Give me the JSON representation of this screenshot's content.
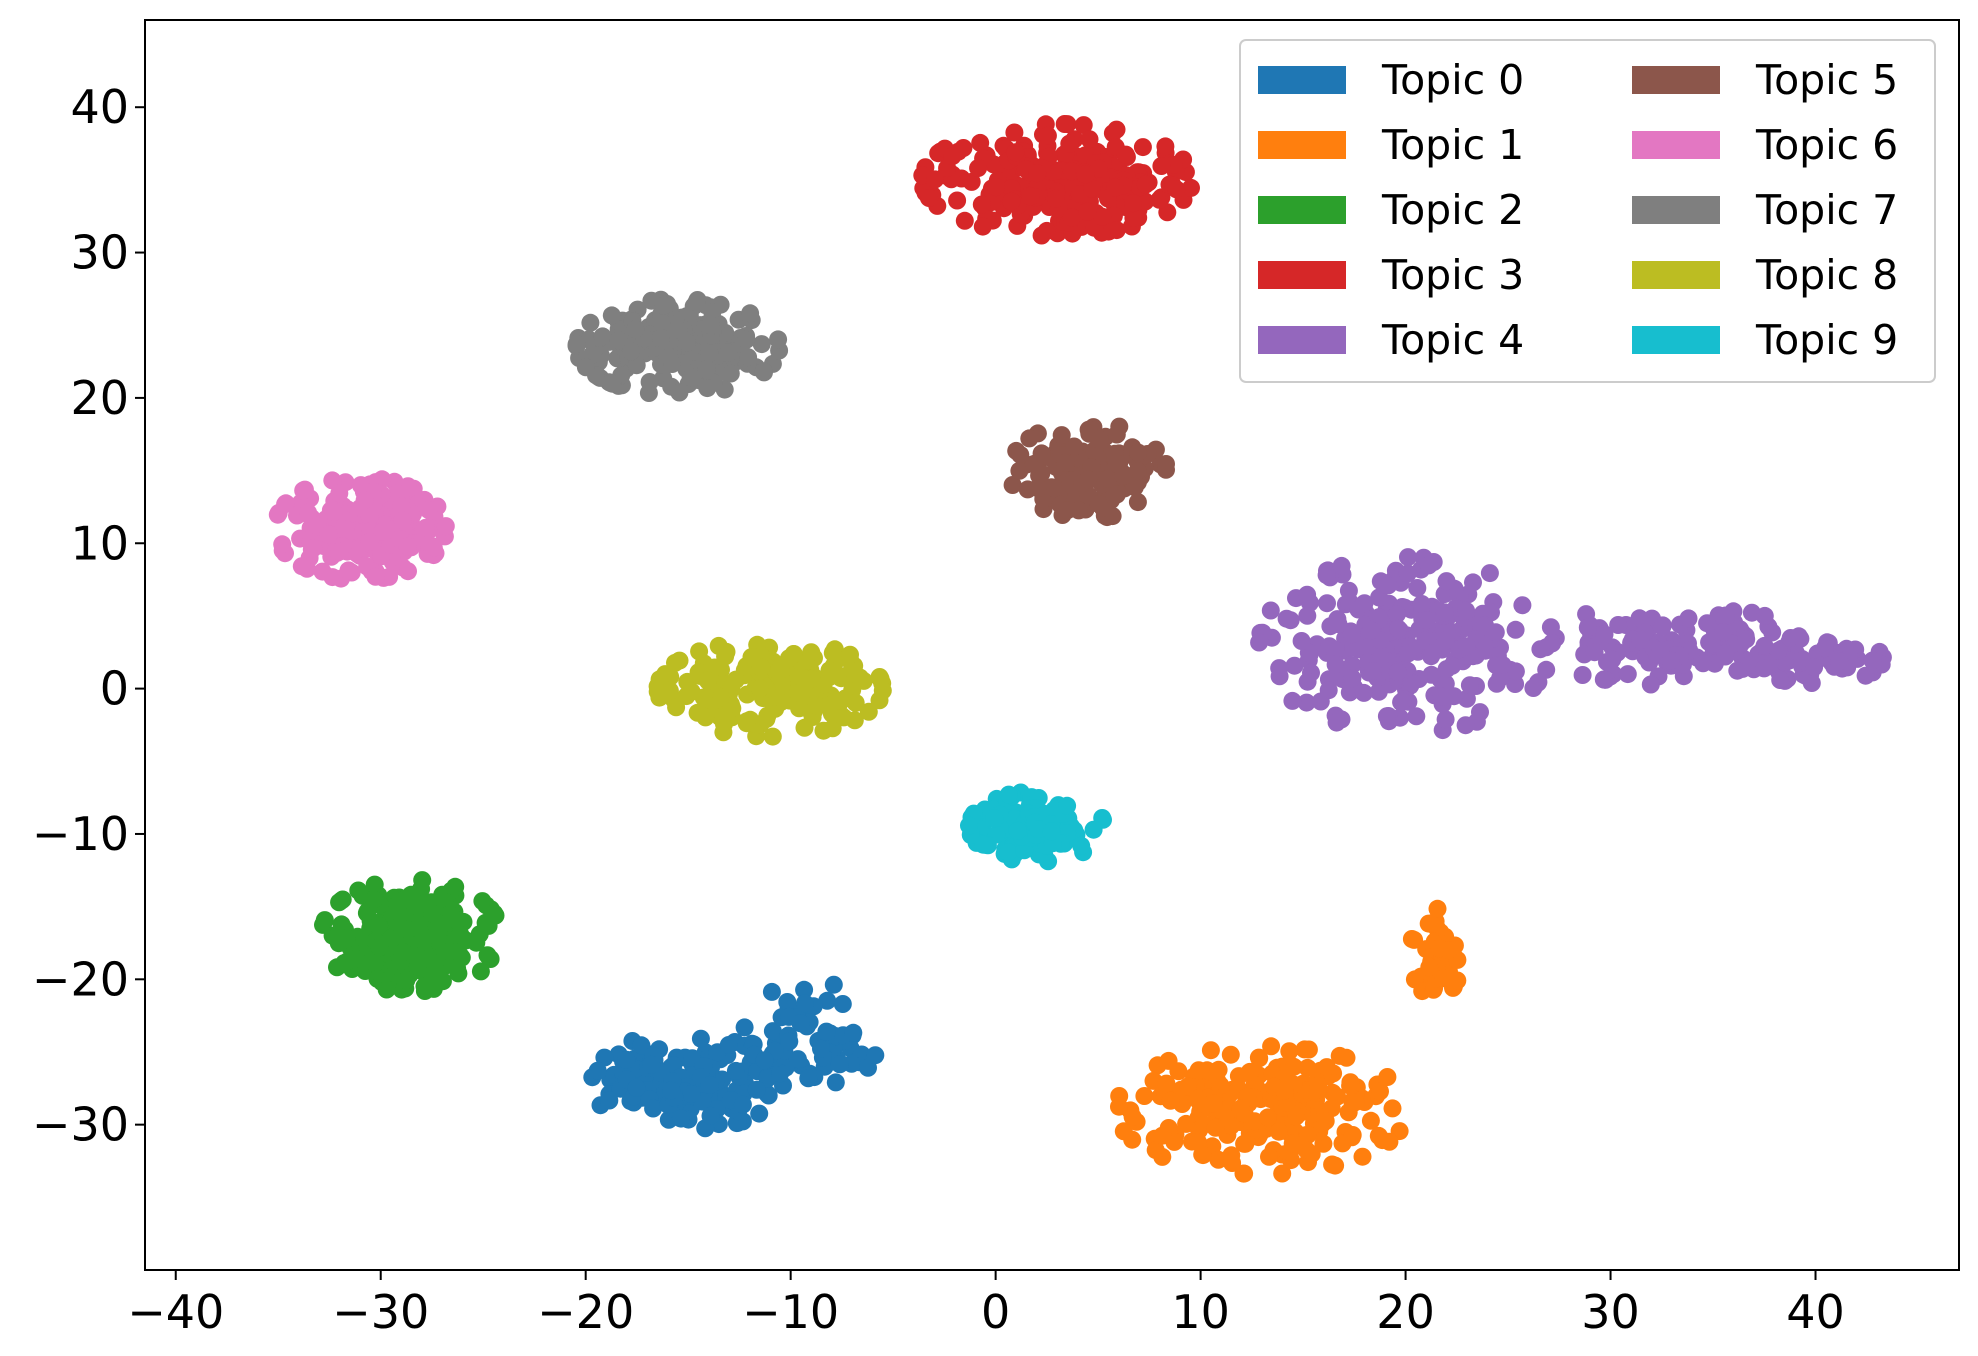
{
  "chart_data": {
    "type": "scatter",
    "title": "",
    "xlabel": "",
    "ylabel": "",
    "xlim": [
      -41.5,
      47
    ],
    "ylim": [
      -40,
      46
    ],
    "xticks": [
      -40,
      -30,
      -20,
      -10,
      0,
      10,
      20,
      30,
      40
    ],
    "yticks": [
      -30,
      -20,
      -10,
      0,
      10,
      20,
      30,
      40
    ],
    "xtick_labels": [
      "−40",
      "−30",
      "−20",
      "−10",
      "0",
      "10",
      "20",
      "30",
      "40"
    ],
    "ytick_labels": [
      "−30",
      "−20",
      "−10",
      "0",
      "10",
      "20",
      "30",
      "40"
    ],
    "grid": false,
    "legend_position": "top-right",
    "legend_columns": 2,
    "series": [
      {
        "name": "Topic 0",
        "color": "#1f77b4",
        "count": 230,
        "blobs": [
          [
            -15,
            -27,
            4.5,
            3.0,
            0.7
          ],
          [
            -9,
            -24,
            3.0,
            3.5,
            0.3
          ]
        ]
      },
      {
        "name": "Topic 1",
        "color": "#ff7f0e",
        "count": 260,
        "blobs": [
          [
            13,
            -29,
            6.5,
            4.0,
            0.85
          ],
          [
            21.5,
            -18,
            1.2,
            3.0,
            0.15
          ]
        ]
      },
      {
        "name": "Topic 2",
        "color": "#2ca02c",
        "count": 230,
        "blobs": [
          [
            -28.5,
            -17,
            4.0,
            3.5,
            1.0
          ]
        ]
      },
      {
        "name": "Topic 3",
        "color": "#d62728",
        "count": 260,
        "blobs": [
          [
            3,
            35,
            6.0,
            3.5,
            1.0
          ]
        ]
      },
      {
        "name": "Topic 4",
        "color": "#9467bd",
        "count": 430,
        "blobs": [
          [
            20,
            3,
            6.5,
            5.5,
            0.55
          ],
          [
            33,
            3,
            6.0,
            2.5,
            0.3
          ],
          [
            40,
            2,
            3.0,
            1.5,
            0.15
          ]
        ]
      },
      {
        "name": "Topic 5",
        "color": "#8c564b",
        "count": 160,
        "blobs": [
          [
            4.5,
            15,
            3.5,
            3.0,
            1.0
          ]
        ]
      },
      {
        "name": "Topic 6",
        "color": "#e377c2",
        "count": 190,
        "blobs": [
          [
            -31,
            11,
            3.8,
            3.2,
            1.0
          ]
        ]
      },
      {
        "name": "Topic 7",
        "color": "#7f7f7f",
        "count": 220,
        "blobs": [
          [
            -15.5,
            23.5,
            4.5,
            3.0,
            1.0
          ]
        ]
      },
      {
        "name": "Topic 8",
        "color": "#bcbd22",
        "count": 210,
        "blobs": [
          [
            -11,
            0,
            5.0,
            3.0,
            1.0
          ]
        ]
      },
      {
        "name": "Topic 9",
        "color": "#17becf",
        "count": 130,
        "blobs": [
          [
            2,
            -9.5,
            3.0,
            2.2,
            1.0
          ]
        ]
      }
    ]
  }
}
